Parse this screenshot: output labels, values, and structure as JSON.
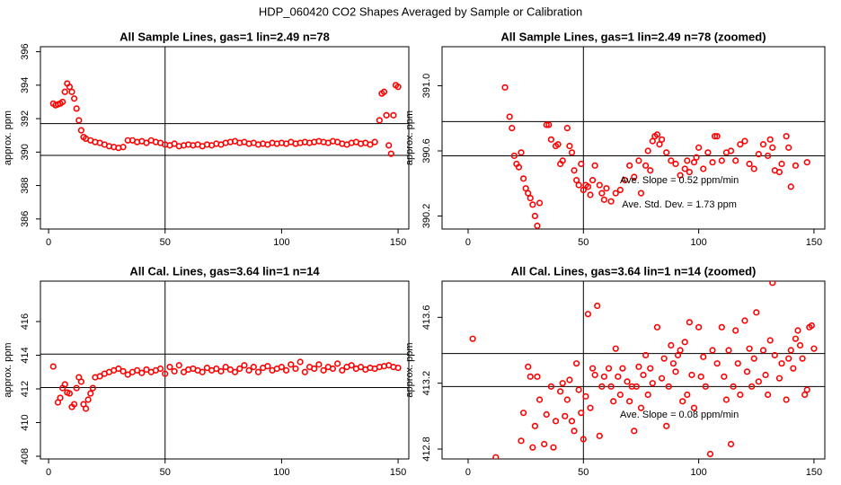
{
  "title": "HDP_060420  CO2 Shapes Averaged by Sample or Calibration",
  "chart_data": [
    {
      "type": "scatter",
      "title": "All Sample Lines, gas=1 lin=2.49 n=78",
      "ylabel": "approx. ppm",
      "color": "#ff0000",
      "xlim": [
        -3.5,
        154.6
      ],
      "ylim": [
        385.4,
        396.3
      ],
      "xticks": [
        0,
        50,
        100,
        150
      ],
      "yticks": [
        386,
        388,
        390,
        392,
        394,
        396
      ],
      "hlines": [
        391.7,
        389.8
      ],
      "vlines": [
        50
      ],
      "annotations": [],
      "x": [
        2,
        3,
        4,
        5,
        6,
        7,
        8,
        9,
        10,
        11,
        12,
        13,
        14,
        15,
        16,
        18,
        20,
        22,
        24,
        26,
        28,
        30,
        32,
        34,
        36,
        38,
        40,
        42,
        44,
        46,
        48,
        50,
        52,
        54,
        56,
        58,
        60,
        62,
        64,
        66,
        68,
        70,
        72,
        74,
        76,
        78,
        80,
        82,
        84,
        86,
        88,
        90,
        92,
        94,
        96,
        98,
        100,
        102,
        104,
        106,
        108,
        110,
        112,
        114,
        116,
        118,
        120,
        122,
        124,
        126,
        128,
        130,
        132,
        134,
        136,
        138,
        140,
        142,
        143,
        144,
        145,
        146,
        147,
        148,
        149,
        150
      ],
      "values": [
        392.9,
        392.8,
        392.85,
        392.9,
        393,
        393.6,
        394.1,
        393.9,
        393.6,
        393.2,
        392.6,
        391.9,
        391.3,
        390.9,
        390.8,
        390.7,
        390.6,
        390.55,
        390.45,
        390.35,
        390.3,
        390.25,
        390.3,
        390.7,
        390.7,
        390.6,
        390.65,
        390.55,
        390.7,
        390.6,
        390.55,
        390.45,
        390.4,
        390.5,
        390.35,
        390.4,
        390.45,
        390.4,
        390.45,
        390.35,
        390.45,
        390.4,
        390.5,
        390.45,
        390.55,
        390.6,
        390.65,
        390.55,
        390.6,
        390.5,
        390.55,
        390.45,
        390.5,
        390.45,
        390.55,
        390.5,
        390.55,
        390.5,
        390.6,
        390.5,
        390.55,
        390.6,
        390.55,
        390.6,
        390.65,
        390.6,
        390.55,
        390.65,
        390.6,
        390.5,
        390.45,
        390.55,
        390.6,
        390.5,
        390.55,
        390.45,
        390.6,
        391.9,
        393.5,
        393.6,
        392.2,
        390.4,
        389.9,
        392.2,
        394,
        393.9
      ]
    },
    {
      "type": "scatter",
      "title": "All Sample Lines, gas=1 lin=2.49 n=78 (zoomed)",
      "ylabel": "approx. ppm",
      "color": "#ff0000",
      "xlim": [
        -11.3,
        154.7
      ],
      "ylim": [
        390.12,
        391.24
      ],
      "xticks": [
        0,
        50,
        100,
        150
      ],
      "yticks": [
        390.2,
        390.6,
        {
          "value": 391,
          "label": "391.0"
        }
      ],
      "hlines": [
        390.78,
        390.57
      ],
      "vlines": [
        50
      ],
      "annotations": [
        "Ave. Slope =  0.52  ppm/min",
        "Ave. Std. Dev. =  1.73  ppm"
      ],
      "x": [
        16,
        18,
        19,
        20,
        21,
        22,
        23,
        24,
        25,
        26,
        27,
        28,
        29,
        30,
        31,
        34,
        35,
        36,
        38,
        39,
        40,
        41,
        43,
        44,
        45,
        46,
        47,
        48,
        49,
        50,
        51,
        52,
        53,
        54,
        55,
        57,
        58,
        59,
        60,
        62,
        64,
        66,
        68,
        70,
        72,
        74,
        75,
        77,
        78,
        79,
        80,
        81,
        82,
        83,
        84,
        86,
        88,
        90,
        92,
        94,
        95,
        96,
        98,
        99,
        100,
        102,
        104,
        106,
        107,
        108,
        110,
        112,
        114,
        116,
        118,
        120,
        122,
        124,
        126,
        128,
        130,
        131,
        132,
        133,
        135,
        136,
        138,
        139,
        140,
        142,
        147
      ],
      "values": [
        390.99,
        390.81,
        390.74,
        390.57,
        390.52,
        390.5,
        390.59,
        390.43,
        390.37,
        390.34,
        390.31,
        390.27,
        390.2,
        390.14,
        390.28,
        390.76,
        390.76,
        390.67,
        390.63,
        390.64,
        390.52,
        390.54,
        390.74,
        390.63,
        390.59,
        390.48,
        390.42,
        390.39,
        390.52,
        390.36,
        390.39,
        390.38,
        390.33,
        390.42,
        390.51,
        390.39,
        390.34,
        390.3,
        390.37,
        390.29,
        390.34,
        390.36,
        390.42,
        390.51,
        390.44,
        390.54,
        390.34,
        390.51,
        390.6,
        390.48,
        390.66,
        390.69,
        390.7,
        390.64,
        390.67,
        390.59,
        390.54,
        390.52,
        390.45,
        390.49,
        390.54,
        390.47,
        390.53,
        390.56,
        390.62,
        390.49,
        390.59,
        390.53,
        390.69,
        390.69,
        390.54,
        390.59,
        390.6,
        390.54,
        390.64,
        390.66,
        390.52,
        390.49,
        390.58,
        390.64,
        390.57,
        390.67,
        390.62,
        390.48,
        390.47,
        390.52,
        390.69,
        390.62,
        390.38,
        390.51,
        390.53
      ]
    },
    {
      "type": "scatter",
      "title": "All Cal. Lines, gas=3.64 lin=1 n=14",
      "ylabel": "approx. ppm",
      "color": "#ff0000",
      "xlim": [
        -3.5,
        154.6
      ],
      "ylim": [
        407.84,
        418.4
      ],
      "xticks": [
        0,
        50,
        100,
        150
      ],
      "yticks": [
        408,
        410,
        412,
        414,
        416
      ],
      "hlines": [
        414.07,
        412.08
      ],
      "vlines": [
        50
      ],
      "annotations": [],
      "x": [
        2,
        4,
        5,
        6,
        7,
        8,
        9,
        10,
        11,
        12,
        13,
        14,
        15,
        16,
        17,
        18,
        19,
        20,
        22,
        24,
        26,
        28,
        30,
        32,
        34,
        36,
        38,
        40,
        42,
        44,
        46,
        48,
        50,
        52,
        54,
        56,
        58,
        60,
        62,
        64,
        66,
        68,
        70,
        72,
        74,
        76,
        78,
        80,
        82,
        84,
        86,
        88,
        90,
        92,
        94,
        96,
        98,
        100,
        102,
        104,
        106,
        108,
        110,
        112,
        114,
        116,
        118,
        120,
        122,
        124,
        126,
        128,
        130,
        132,
        134,
        136,
        138,
        140,
        142,
        144,
        146,
        148,
        150
      ],
      "values": [
        413.33,
        411.2,
        411.47,
        412.05,
        412.27,
        411.79,
        411.73,
        410.93,
        411.09,
        412.05,
        412.69,
        412.43,
        411.09,
        410.83,
        411.36,
        411.73,
        412.05,
        412.69,
        412.75,
        412.9,
        413,
        413.1,
        413.2,
        413.05,
        412.85,
        413,
        413.1,
        412.95,
        413.15,
        413,
        413.1,
        413.2,
        412.9,
        413.3,
        413.05,
        413.4,
        413,
        413.15,
        413.2,
        413.1,
        413,
        413.25,
        413.1,
        413.2,
        413.05,
        413.3,
        413.15,
        413,
        413.2,
        413.4,
        413.1,
        413.3,
        413,
        413.25,
        413.35,
        413.1,
        413.2,
        413.3,
        413.1,
        413.45,
        413.2,
        413.6,
        413,
        413.3,
        413.2,
        413.45,
        413.1,
        413.3,
        413.2,
        413.5,
        413.1,
        413.3,
        413.4,
        413.2,
        413.3,
        413.15,
        413.25,
        413.2,
        413.3,
        413.35,
        413.4,
        413.3,
        413.25
      ]
    },
    {
      "type": "scatter",
      "title": "All Cal. Lines, gas=3.64 lin=1 n=14 (zoomed)",
      "ylabel": "approx. ppm",
      "color": "#ff0000",
      "xlim": [
        -11.3,
        154.7
      ],
      "ylim": [
        412.74,
        413.82
      ],
      "xticks": [
        0,
        50,
        100,
        150
      ],
      "yticks": [
        412.8,
        413.2,
        413.6
      ],
      "hlines": [
        413.38,
        413.18
      ],
      "vlines": [
        50
      ],
      "annotations": [
        "Ave. Slope =  0.08  ppm/min"
      ],
      "x": [
        2,
        12,
        23,
        24,
        26,
        27,
        28,
        29,
        30,
        31,
        33,
        34,
        36,
        37,
        38,
        40,
        41,
        42,
        43,
        44,
        45,
        46,
        47,
        48,
        49,
        50,
        51,
        52,
        53,
        54,
        55,
        56,
        57,
        58,
        59,
        61,
        62,
        63,
        64,
        65,
        66,
        67,
        69,
        70,
        71,
        72,
        73,
        74,
        75,
        76,
        77,
        78,
        79,
        80,
        82,
        84,
        85,
        86,
        87,
        88,
        89,
        90,
        91,
        92,
        93,
        94,
        95,
        96,
        97,
        98,
        100,
        101,
        102,
        103,
        105,
        106,
        108,
        110,
        111,
        112,
        113,
        114,
        115,
        116,
        117,
        118,
        120,
        121,
        122,
        123,
        124,
        125,
        126,
        128,
        129,
        130,
        131,
        132,
        133,
        135,
        136,
        138,
        139,
        140,
        141,
        142,
        143,
        144,
        145,
        146,
        147,
        148,
        149,
        150
      ],
      "values": [
        413.47,
        412.75,
        412.85,
        413.02,
        413.3,
        413.24,
        412.81,
        412.94,
        413.24,
        413.1,
        412.83,
        413.01,
        413.18,
        412.81,
        412.97,
        413.15,
        413.2,
        413,
        413.1,
        413.22,
        412.97,
        412.91,
        413.32,
        413.16,
        413.02,
        412.86,
        413.12,
        413.62,
        413.05,
        413.29,
        413.25,
        413.67,
        412.88,
        413.18,
        413.24,
        413.29,
        413.18,
        413.09,
        413.41,
        413.24,
        413.13,
        413.29,
        413.21,
        413.09,
        413.18,
        412.91,
        413.18,
        413.3,
        413.05,
        413.25,
        413.37,
        413.13,
        413.29,
        413.2,
        413.54,
        413.23,
        413.35,
        412.94,
        413.18,
        413.43,
        413.32,
        413.27,
        413.37,
        413.4,
        413.09,
        413.45,
        413.13,
        413.57,
        413.25,
        413.05,
        413.54,
        413.24,
        413.36,
        413.18,
        412.77,
        413.4,
        413.32,
        413.54,
        413.24,
        413.1,
        413.4,
        412.83,
        413.18,
        413.52,
        413.32,
        413.13,
        413.58,
        413.27,
        413.41,
        413.18,
        413.35,
        413.63,
        413.21,
        413.4,
        413.25,
        413.13,
        413.46,
        413.81,
        413.37,
        413.23,
        413.32,
        413.1,
        413.35,
        413.4,
        413.29,
        413.47,
        413.52,
        413.43,
        413.35,
        413.13,
        413.16,
        413.54,
        413.55,
        413.41
      ]
    }
  ]
}
